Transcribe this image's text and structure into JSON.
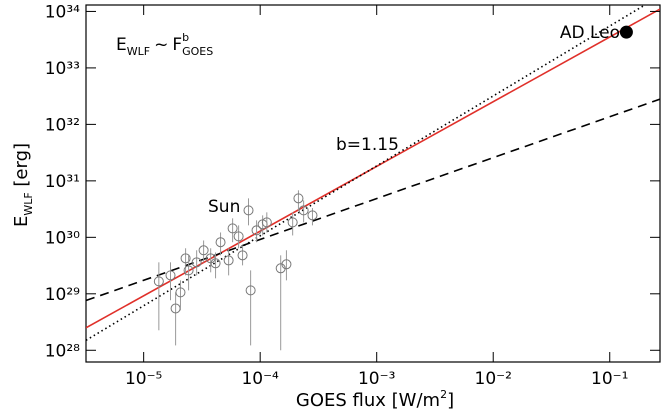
{
  "chart_data": {
    "type": "scatter",
    "xlabel": [
      "GOES flux [W/m",
      "2",
      "]"
    ],
    "ylabel": [
      "E",
      "WLF",
      " [erg]"
    ],
    "formula": [
      "E",
      "WLF",
      "~",
      "F",
      "b",
      "GOES"
    ],
    "xlim": [
      3.2e-06,
      0.27
    ],
    "ylim": [
      6.2e+27,
      1.3e+34
    ],
    "xlog": true,
    "ylog": true,
    "xticks": [
      {
        "value": 1e-05,
        "label": "10⁻⁵"
      },
      {
        "value": 0.0001,
        "label": "10⁻⁴"
      },
      {
        "value": 0.001,
        "label": "10⁻³"
      },
      {
        "value": 0.01,
        "label": "10⁻²"
      },
      {
        "value": 0.1,
        "label": "10⁻¹"
      }
    ],
    "yticks": [
      {
        "value": 1e+28,
        "label": "10²⁸"
      },
      {
        "value": 1e+29,
        "label": "10²⁹"
      },
      {
        "value": 1e+30,
        "label": "10³⁰"
      },
      {
        "value": 1e+31,
        "label": "10³¹"
      },
      {
        "value": 1e+32,
        "label": "10³²"
      },
      {
        "value": 1e+33,
        "label": "10³³"
      },
      {
        "value": 1e+34,
        "label": "10³⁴"
      }
    ],
    "series": [
      {
        "name": "Sun",
        "color": "#777777",
        "x": [
          1.35e-05,
          1.7e-05,
          1.88e-05,
          2.07e-05,
          2.29e-05,
          2.43e-05,
          2.85e-05,
          3.27e-05,
          3.76e-05,
          4.14e-05,
          4.57e-05,
          5.36e-05,
          5.8e-05,
          6.53e-05,
          7.06e-05,
          7.94e-05,
          8.28e-05,
          9.31e-05,
          0.000105,
          0.000114,
          0.00015,
          0.000168,
          0.00019,
          0.000213,
          0.000236,
          0.000281
        ],
        "values": [
          1.66e+29,
          2.12e+29,
          5.5e+28,
          1.06e+29,
          4.25e+29,
          2.6e+29,
          3.61e+29,
          5.9e+29,
          4.25e+29,
          3.47e+29,
          8.2e+29,
          3.9e+29,
          1.44e+30,
          1.04e+30,
          4.8e+29,
          3e+30,
          1.15e+29,
          1.33e+30,
          1.7e+30,
          1.84e+30,
          2.83e+29,
          3.33e+29,
          1.84e+30,
          4.9e+30,
          3e+30,
          2.45e+30
        ],
        "y_low": [
          2.26e+28,
          7.7e+28,
          1.22e+28,
          5.1e+28,
          2.12e+29,
          1.15e+29,
          2.12e+29,
          3.61e+29,
          2.4e+29,
          1.88e+29,
          4.8e+29,
          2.12e+29,
          8.2e+29,
          6.4e+29,
          3.19e+29,
          1.63e+30,
          1.22e+28,
          8.2e+29,
          1.08e+30,
          1.22e+30,
          1e+28,
          1.73e+29,
          1.08e+30,
          3e+30,
          1.84e+30,
          1.63e+30
        ],
        "y_high": [
          3.61e+29,
          3.61e+29,
          1.06e+29,
          1.73e+29,
          6.4e+29,
          4.8e+29,
          5.9e+29,
          8.8e+29,
          6.4e+29,
          5.4e+29,
          1.22e+30,
          6.4e+29,
          2.17e+30,
          1.63e+30,
          7.2e+29,
          4.9e+30,
          2.6e+29,
          2e+30,
          2.45e+30,
          2.77e+30,
          4.8e+29,
          5.9e+29,
          2.77e+30,
          6.8e+30,
          4.5e+30,
          3.3e+30
        ]
      },
      {
        "name": "AD Leo",
        "color": "#000000",
        "x": [
          0.139
        ],
        "values": [
          4.3e+33
        ]
      }
    ],
    "lines": [
      {
        "color": "#e0302a",
        "style": "solid",
        "x": [
          3.2e-06,
          0.27
        ],
        "values": [
          2.5e+28,
          1.1e+34
        ]
      },
      {
        "color": "#000000",
        "style": "dotted",
        "x": [
          3.2e-06,
          0.2
        ],
        "values": [
          1.5e+28,
          1.3e+34
        ]
      },
      {
        "color": "#000000",
        "style": "dashed",
        "x": [
          3.2e-06,
          0.27
        ],
        "values": [
          7.6e+28,
          2.8e+32
        ]
      }
    ],
    "annotations": [
      {
        "text": "Sun",
        "color": "#000000"
      },
      {
        "text": "b=1.15",
        "color": "#e0302a"
      }
    ]
  }
}
